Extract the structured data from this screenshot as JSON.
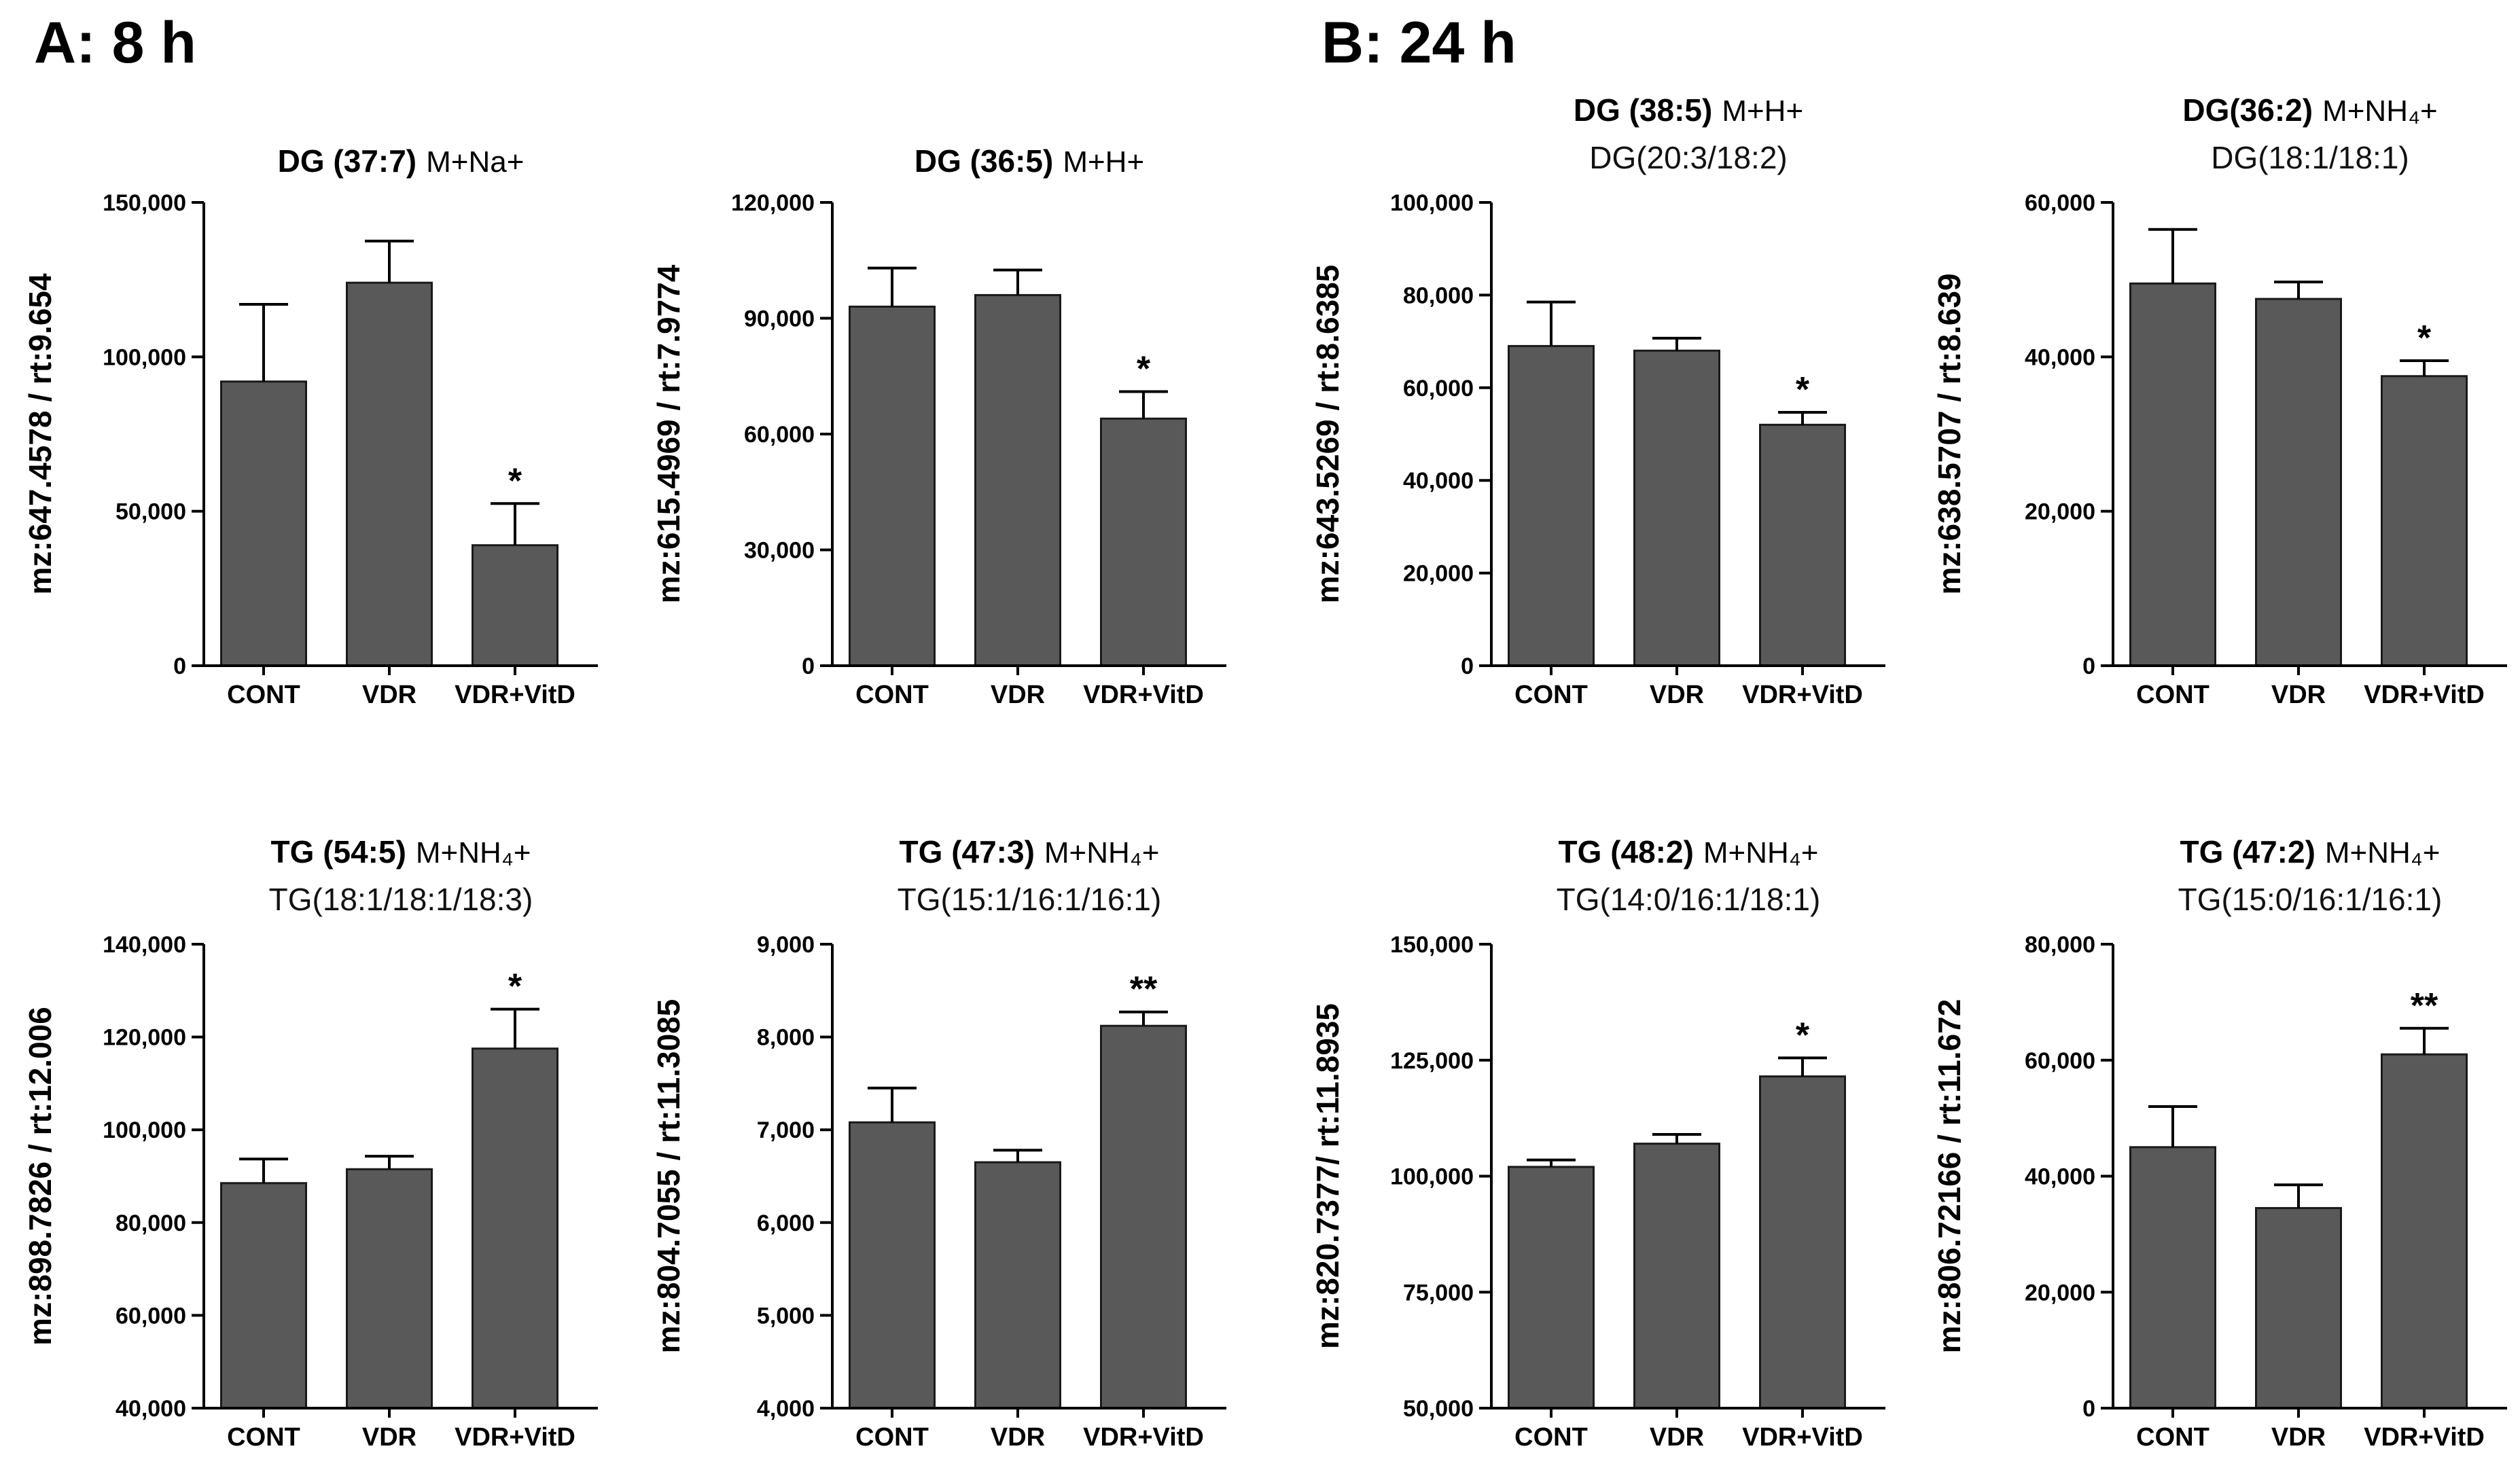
{
  "panel_labels": {
    "a": "A: 8 h",
    "b": "B: 24 h"
  },
  "chart_data": [
    {
      "type": "bar",
      "panel": "A",
      "title_bold": "DG (37:7)",
      "title_ion": "M+Na+",
      "subtitle": "",
      "ylabel": "mz:647.4578 / rt:9.654",
      "categories": [
        "CONT",
        "VDR",
        "VDR+VitD"
      ],
      "values": [
        92000,
        124000,
        39000
      ],
      "errors": [
        25000,
        13500,
        13500
      ],
      "significance": [
        "",
        "",
        "*"
      ],
      "ylim": [
        0,
        150000
      ],
      "yticks": [
        0,
        50000,
        100000,
        150000
      ],
      "ytick_labels": [
        "0",
        "50,000",
        "100,000",
        "150,000"
      ]
    },
    {
      "type": "bar",
      "panel": "A",
      "title_bold": "DG (36:5)",
      "title_ion": "M+H+",
      "subtitle": "",
      "ylabel": "mz:615.4969 / rt:7.9774",
      "categories": [
        "CONT",
        "VDR",
        "VDR+VitD"
      ],
      "values": [
        93000,
        96000,
        64000
      ],
      "errors": [
        10000,
        6500,
        7000
      ],
      "significance": [
        "",
        "",
        "*"
      ],
      "ylim": [
        0,
        120000
      ],
      "yticks": [
        0,
        30000,
        60000,
        90000,
        120000
      ],
      "ytick_labels": [
        "0",
        "30,000",
        "60,000",
        "90,000",
        "120,000"
      ]
    },
    {
      "type": "bar",
      "panel": "B",
      "title_bold": "DG (38:5)",
      "title_ion": "M+H+",
      "subtitle": "DG(20:3/18:2)",
      "ylabel": "mz:643.5269 / rt:8.6385",
      "categories": [
        "CONT",
        "VDR",
        "VDR+VitD"
      ],
      "values": [
        69000,
        68000,
        52000
      ],
      "errors": [
        9500,
        2700,
        2700
      ],
      "significance": [
        "",
        "",
        "*"
      ],
      "ylim": [
        0,
        100000
      ],
      "yticks": [
        0,
        20000,
        40000,
        60000,
        80000,
        100000
      ],
      "ytick_labels": [
        "0",
        "20,000",
        "40,000",
        "60,000",
        "80,000",
        "100,000"
      ]
    },
    {
      "type": "bar",
      "panel": "B",
      "title_bold": "DG(36:2)",
      "title_ion": "M+NH₄+",
      "subtitle": "DG(18:1/18:1)",
      "ylabel": "mz:638.5707 / rt:8.639",
      "categories": [
        "CONT",
        "VDR",
        "VDR+VitD"
      ],
      "values": [
        49500,
        47500,
        37500
      ],
      "errors": [
        7000,
        2200,
        2000
      ],
      "significance": [
        "",
        "",
        "*"
      ],
      "ylim": [
        0,
        60000
      ],
      "yticks": [
        0,
        20000,
        40000,
        60000
      ],
      "ytick_labels": [
        "0",
        "20,000",
        "40,000",
        "60,000"
      ]
    },
    {
      "type": "bar",
      "panel": "A",
      "title_bold": "TG (54:5)",
      "title_ion": "M+NH₄+",
      "subtitle": "TG(18:1/18:1/18:3)",
      "ylabel": "mz:898.7826 / rt:12.006",
      "categories": [
        "CONT",
        "VDR",
        "VDR+VitD"
      ],
      "values": [
        88500,
        91500,
        117500
      ],
      "errors": [
        5200,
        2800,
        8500
      ],
      "significance": [
        "",
        "",
        "*"
      ],
      "ylim": [
        40000,
        140000
      ],
      "yticks": [
        40000,
        60000,
        80000,
        100000,
        120000,
        140000
      ],
      "ytick_labels": [
        "40,000",
        "60,000",
        "80,000",
        "100,000",
        "120,000",
        "140,000"
      ]
    },
    {
      "type": "bar",
      "panel": "A",
      "title_bold": "TG (47:3)",
      "title_ion": "M+NH₄+",
      "subtitle": "TG(15:1/16:1/16:1)",
      "ylabel": "mz:804.7055 / rt:11.3085",
      "categories": [
        "CONT",
        "VDR",
        "VDR+VitD"
      ],
      "values": [
        7080,
        6650,
        8120
      ],
      "errors": [
        370,
        130,
        150
      ],
      "significance": [
        "",
        "",
        "**"
      ],
      "ylim": [
        4000,
        9000
      ],
      "yticks": [
        4000,
        5000,
        6000,
        7000,
        8000,
        9000
      ],
      "ytick_labels": [
        "4,000",
        "5,000",
        "6,000",
        "7,000",
        "8,000",
        "9,000"
      ]
    },
    {
      "type": "bar",
      "panel": "B",
      "title_bold": "TG (48:2)",
      "title_ion": "M+NH₄+",
      "subtitle": "TG(14:0/16:1/18:1)",
      "ylabel": "mz:820.7377/ rt:11.8935",
      "categories": [
        "CONT",
        "VDR",
        "VDR+VitD"
      ],
      "values": [
        102000,
        107000,
        121500
      ],
      "errors": [
        1500,
        2000,
        4000
      ],
      "significance": [
        "",
        "",
        "*"
      ],
      "ylim": [
        50000,
        150000
      ],
      "yticks": [
        50000,
        75000,
        100000,
        125000,
        150000
      ],
      "ytick_labels": [
        "50,000",
        "75,000",
        "100,000",
        "125,000",
        "150,000"
      ]
    },
    {
      "type": "bar",
      "panel": "B",
      "title_bold": "TG (47:2)",
      "title_ion": "M+NH₄+",
      "subtitle": "TG(15:0/16:1/16:1)",
      "ylabel": "mz:806.72166 / rt:11.672",
      "categories": [
        "CONT",
        "VDR",
        "VDR+VitD"
      ],
      "values": [
        45000,
        34500,
        61000
      ],
      "errors": [
        7000,
        4000,
        4500
      ],
      "significance": [
        "",
        "",
        "**"
      ],
      "ylim": [
        0,
        80000
      ],
      "yticks": [
        0,
        20000,
        40000,
        60000,
        80000
      ],
      "ytick_labels": [
        "0",
        "20,000",
        "40,000",
        "60,000",
        "80,000"
      ]
    }
  ]
}
